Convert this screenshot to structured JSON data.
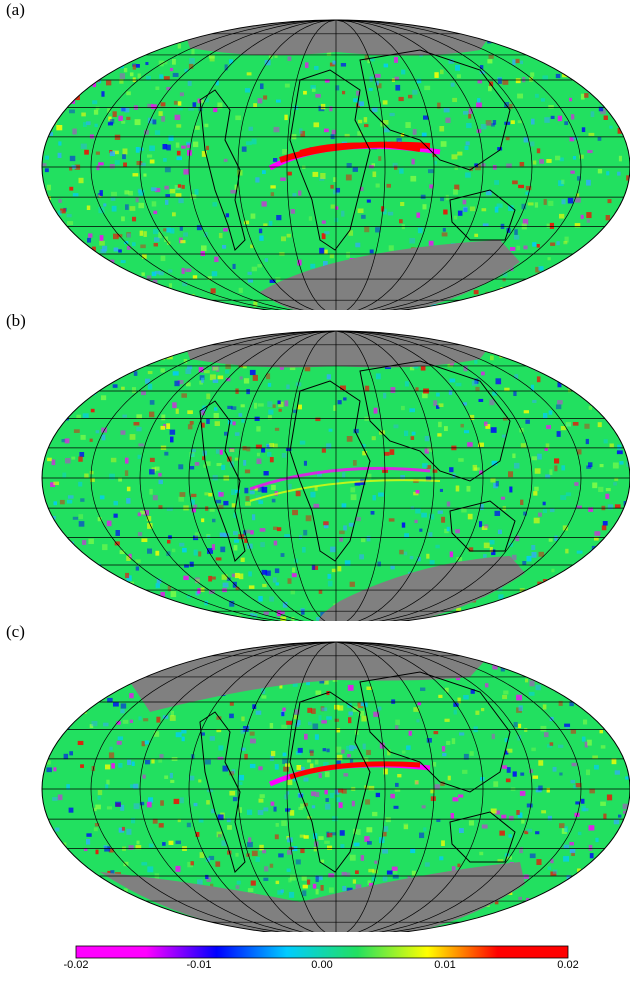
{
  "panels": [
    {
      "label": "(a)"
    },
    {
      "label": "(b)"
    },
    {
      "label": "(c)"
    }
  ],
  "projection": "Mollweide",
  "graticule": {
    "meridian_step_deg": 30,
    "parallel_step_deg": 15
  },
  "masked_color": "#808080",
  "land_outline": "black",
  "background_field_color": "#22e060",
  "colorbar": {
    "ticks": [
      "-0.02",
      "-0.01",
      "0.00",
      "0.01",
      "0.02"
    ],
    "min": -0.02,
    "max": 0.02,
    "stops": [
      "#ff00ff",
      "#ff00ff",
      "#0000ff",
      "#00ccff",
      "#22e060",
      "#ffff00",
      "#ff0000",
      "#ff0000"
    ]
  }
}
